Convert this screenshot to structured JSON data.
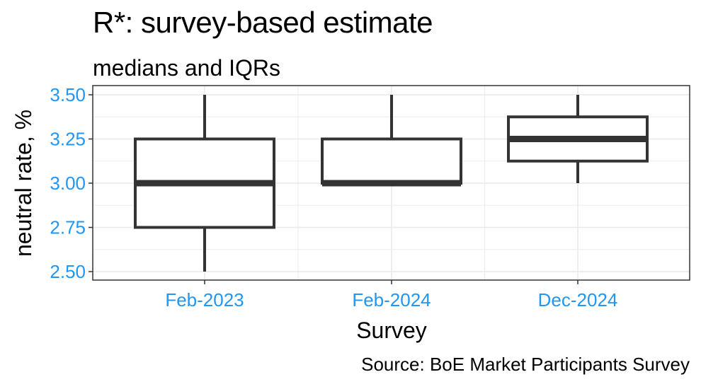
{
  "chart_data": {
    "type": "boxplot",
    "title": "R*: survey-based estimate",
    "subtitle": "medians and IQRs",
    "xlabel": "Survey",
    "ylabel": "neutral rate, %",
    "caption": "Source: BoE Market Participants Survey",
    "ylim": [
      2.5,
      3.5
    ],
    "yticks": [
      "2.50",
      "2.75",
      "3.00",
      "3.25",
      "3.50"
    ],
    "grid": true,
    "colors": {
      "box": "#333333",
      "tick_text": "#2196f3",
      "grid": "#ebebeb",
      "panel_border": "#333333"
    },
    "categories": [
      "Feb-2023",
      "Feb-2024",
      "Dec-2024"
    ],
    "boxes": [
      {
        "category": "Feb-2023",
        "min": 2.5,
        "q1": 2.75,
        "median": 3.0,
        "q3": 3.25,
        "max": 3.5
      },
      {
        "category": "Feb-2024",
        "min": 3.0,
        "q1": 3.0,
        "median": 3.0,
        "q3": 3.25,
        "max": 3.5
      },
      {
        "category": "Dec-2024",
        "min": 3.0,
        "q1": 3.125,
        "median": 3.25,
        "q3": 3.375,
        "max": 3.5
      }
    ]
  }
}
